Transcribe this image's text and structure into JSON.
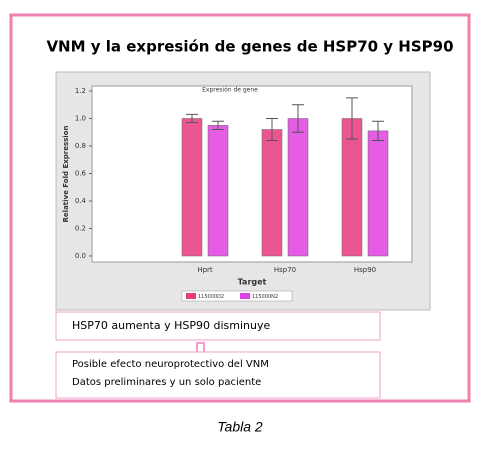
{
  "slide_title": "VNM y la expresión de genes de HSP70 y HSP90",
  "note": "HSP70 aumenta y HSP90 disminuye",
  "conclusions": [
    "Posible efecto neuroprotectivo del VNM",
    "Datos preliminares y un solo paciente"
  ],
  "caption": "Tabla 2",
  "chart_data": {
    "type": "bar",
    "title": "Expresión de gene",
    "x_label": "Target",
    "y_label": "Relative Fold Expression",
    "categories": [
      null,
      "Hprt",
      "Hsp70",
      "Hsp90"
    ],
    "series": [
      {
        "name": "115000D2",
        "color": "#e8387e",
        "values": [
          null,
          1.0,
          0.92,
          1.0
        ],
        "errors": [
          null,
          0.03,
          0.08,
          0.15
        ]
      },
      {
        "name": "115000N2",
        "color": "#e040e0",
        "values": [
          null,
          0.95,
          1.0,
          0.91
        ],
        "errors": [
          null,
          0.03,
          0.1,
          0.07
        ]
      }
    ],
    "ylim": [
      0,
      1.2
    ],
    "yticks": [
      {
        "value": 0,
        "label": "0.0"
      },
      0.2,
      0.4,
      0.6,
      0.8,
      {
        "value": 1,
        "label": "1.0"
      },
      1.2
    ],
    "grid": false,
    "legend": "bottom"
  }
}
